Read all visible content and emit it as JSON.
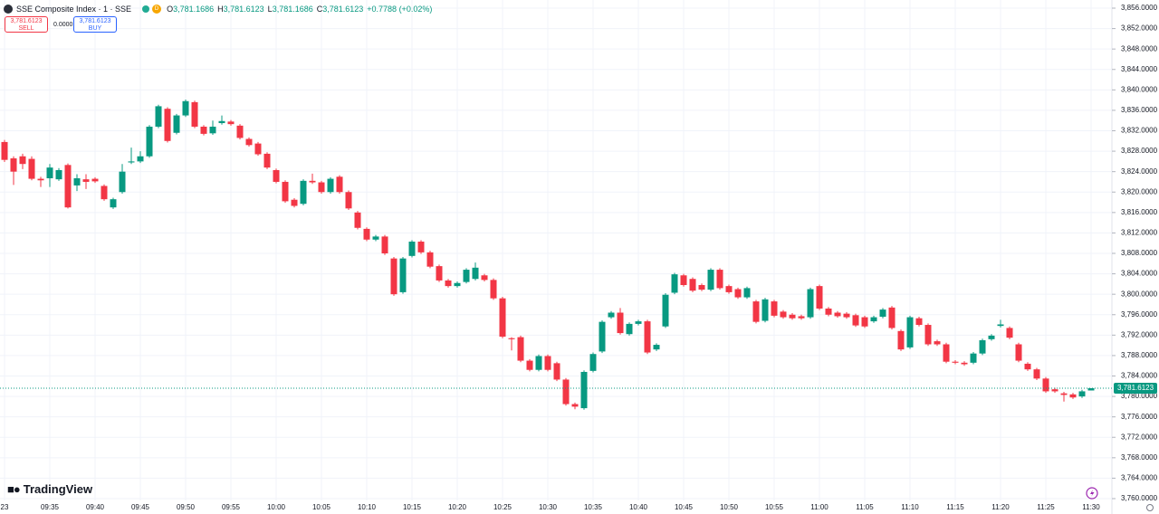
{
  "header": {
    "title": "SSE Composite Index · 1 · SSE",
    "badge": "D",
    "ohlc": [
      {
        "key": "O",
        "value": "3,781.1686"
      },
      {
        "key": "H",
        "value": "3,781.6123"
      },
      {
        "key": "L",
        "value": "3,781.1686"
      },
      {
        "key": "C",
        "value": "3,781.6123"
      }
    ],
    "change": "+0.7788 (+0.02%)"
  },
  "trade": {
    "sell_price": "3,781.6123",
    "sell_label": "SELL",
    "spread": "0.0000",
    "buy_price": "3,781.6123",
    "buy_label": "BUY"
  },
  "logo": "TradingView",
  "chart_data": {
    "type": "candlestick",
    "up_color": "#089981",
    "down_color": "#f23645",
    "grid": true,
    "ylim": [
      3760,
      3856
    ],
    "yticks": [
      {
        "value": 3760,
        "label": "3,760.0000"
      },
      {
        "value": 3764,
        "label": "3,764.0000"
      },
      {
        "value": 3768,
        "label": "3,768.0000"
      },
      {
        "value": 3772,
        "label": "3,772.0000"
      },
      {
        "value": 3776,
        "label": "3,776.0000"
      },
      {
        "value": 3780,
        "label": "3,780.0000"
      },
      {
        "value": 3784,
        "label": "3,784.0000"
      },
      {
        "value": 3788,
        "label": "3,788.0000"
      },
      {
        "value": 3792,
        "label": "3,792.0000"
      },
      {
        "value": 3796,
        "label": "3,796.0000"
      },
      {
        "value": 3800,
        "label": "3,800.0000"
      },
      {
        "value": 3804,
        "label": "3,804.0000"
      },
      {
        "value": 3808,
        "label": "3,808.0000"
      },
      {
        "value": 3812,
        "label": "3,812.0000"
      },
      {
        "value": 3816,
        "label": "3,816.0000"
      },
      {
        "value": 3820,
        "label": "3,820.0000"
      },
      {
        "value": 3824,
        "label": "3,824.0000"
      },
      {
        "value": 3828,
        "label": "3,828.0000"
      },
      {
        "value": 3832,
        "label": "3,832.0000"
      },
      {
        "value": 3836,
        "label": "3,836.0000"
      },
      {
        "value": 3840,
        "label": "3,840.0000"
      },
      {
        "value": 3844,
        "label": "3,844.0000"
      },
      {
        "value": 3848,
        "label": "3,848.0000"
      },
      {
        "value": 3852,
        "label": "3,852.0000"
      },
      {
        "value": 3856,
        "label": "3,856.0000"
      }
    ],
    "xticks": [
      {
        "value": 0,
        "label": "23"
      },
      {
        "value": 5,
        "label": "09:35"
      },
      {
        "value": 10,
        "label": "09:40"
      },
      {
        "value": 15,
        "label": "09:45"
      },
      {
        "value": 20,
        "label": "09:50"
      },
      {
        "value": 25,
        "label": "09:55"
      },
      {
        "value": 30,
        "label": "10:00"
      },
      {
        "value": 35,
        "label": "10:05"
      },
      {
        "value": 40,
        "label": "10:10"
      },
      {
        "value": 45,
        "label": "10:15"
      },
      {
        "value": 50,
        "label": "10:20"
      },
      {
        "value": 55,
        "label": "10:25"
      },
      {
        "value": 60,
        "label": "10:30"
      },
      {
        "value": 65,
        "label": "10:35"
      },
      {
        "value": 70,
        "label": "10:40"
      },
      {
        "value": 75,
        "label": "10:45"
      },
      {
        "value": 80,
        "label": "10:50"
      },
      {
        "value": 85,
        "label": "10:55"
      },
      {
        "value": 90,
        "label": "11:00"
      },
      {
        "value": 95,
        "label": "11:05"
      },
      {
        "value": 100,
        "label": "11:10"
      },
      {
        "value": 105,
        "label": "11:15"
      },
      {
        "value": 110,
        "label": "11:20"
      },
      {
        "value": 115,
        "label": "11:25"
      },
      {
        "value": 120,
        "label": "11:30"
      }
    ],
    "last_price": {
      "value": 3781.6123,
      "label": "3,781.6123"
    },
    "open": [
      3829.8,
      3826.6,
      3827.0,
      3826.5,
      3822.6,
      3822.7,
      3822.5,
      3825.3,
      3821.3,
      3822.5,
      3822.6,
      3821.2,
      3817.0,
      3820.0,
      3825.8,
      3826.0,
      3827.0,
      3832.8,
      3836.3,
      3831.6,
      3835.0,
      3837.6,
      3832.8,
      3831.5,
      3833.5,
      3833.8,
      3833.0,
      3830.4,
      3829.5,
      3827.5,
      3824.3,
      3822.0,
      3818.5,
      3817.7,
      3822.2,
      3821.9,
      3820.0,
      3823.0,
      3820.0,
      3816.0,
      3812.8,
      3810.7,
      3811.3,
      3807.0,
      3800.4,
      3807.5,
      3810.3,
      3808.2,
      3805.5,
      3802.7,
      3801.6,
      3802.4,
      3803.0,
      3803.7,
      3802.8,
      3799.2,
      3791.4,
      3791.6,
      3787.0,
      3785.2,
      3787.9,
      3786.5,
      3783.3,
      3778.5,
      3777.7,
      3785.0,
      3788.8,
      3795.5,
      3796.4,
      3792.2,
      3794.2,
      3794.7,
      3789.2,
      3793.7,
      3800.3,
      3803.7,
      3803.0,
      3801.8,
      3800.9,
      3804.8,
      3801.6,
      3801.0,
      3799.4,
      3798.6,
      3794.8,
      3798.6,
      3796.6,
      3796.0,
      3795.7,
      3795.5,
      3801.6,
      3797.2,
      3796.4,
      3796.2,
      3795.9,
      3795.5,
      3794.7,
      3795.6,
      3797.4,
      3792.8,
      3789.6,
      3795.3,
      3794.0,
      3790.8,
      3790.2,
      3786.8,
      3786.6,
      3786.6,
      3788.4,
      3791.2,
      3793.8,
      3793.4,
      3790.2,
      3786.4,
      3785.3,
      3783.5,
      3781.4,
      3780.6,
      3780.4,
      3780.0,
      3781.1686
    ],
    "high": [
      3830.2,
      3827.0,
      3827.5,
      3827.0,
      3823.0,
      3825.5,
      3824.7,
      3825.6,
      3823.5,
      3823.5,
      3822.9,
      3821.5,
      3818.9,
      3825.5,
      3828.7,
      3828.0,
      3833.1,
      3837.1,
      3836.6,
      3835.3,
      3838.1,
      3837.9,
      3833.1,
      3834.0,
      3835.0,
      3834.1,
      3833.3,
      3830.7,
      3829.8,
      3827.8,
      3824.6,
      3822.3,
      3818.8,
      3822.5,
      3823.6,
      3822.2,
      3822.9,
      3823.3,
      3820.3,
      3816.3,
      3813.1,
      3811.6,
      3811.6,
      3807.3,
      3807.3,
      3810.6,
      3810.6,
      3808.5,
      3805.8,
      3803.0,
      3802.5,
      3805.1,
      3806.2,
      3804.0,
      3803.1,
      3799.5,
      3791.6,
      3791.9,
      3787.3,
      3788.2,
      3788.2,
      3786.8,
      3783.6,
      3778.8,
      3785.1,
      3788.6,
      3794.9,
      3796.7,
      3797.3,
      3794.5,
      3795.0,
      3795.0,
      3790.4,
      3800.2,
      3804.2,
      3804.0,
      3803.3,
      3802.1,
      3805.1,
      3805.1,
      3801.9,
      3801.3,
      3801.5,
      3798.9,
      3799.3,
      3798.9,
      3796.9,
      3796.3,
      3796.0,
      3801.3,
      3801.9,
      3797.5,
      3796.7,
      3796.5,
      3796.2,
      3795.8,
      3795.8,
      3797.3,
      3797.7,
      3793.1,
      3795.8,
      3795.6,
      3794.3,
      3791.1,
      3790.5,
      3787.1,
      3786.9,
      3788.7,
      3791.3,
      3792.2,
      3795.0,
      3793.7,
      3790.5,
      3786.7,
      3785.6,
      3783.8,
      3781.7,
      3780.9,
      3780.7,
      3781.3,
      3781.6123
    ],
    "low": [
      3825.9,
      3821.4,
      3824.5,
      3822.3,
      3821.0,
      3821.0,
      3822.2,
      3816.8,
      3820.2,
      3820.6,
      3821.8,
      3818.3,
      3816.7,
      3819.7,
      3825.5,
      3825.7,
      3826.7,
      3832.5,
      3829.7,
      3831.3,
      3834.7,
      3832.5,
      3831.1,
      3831.2,
      3833.2,
      3833.0,
      3830.3,
      3828.9,
      3827.1,
      3824.5,
      3821.7,
      3817.9,
      3817.0,
      3817.4,
      3821.6,
      3819.7,
      3819.7,
      3819.7,
      3816.5,
      3812.7,
      3810.4,
      3810.4,
      3807.7,
      3799.7,
      3800.1,
      3807.2,
      3807.9,
      3805.1,
      3802.4,
      3801.3,
      3801.3,
      3802.1,
      3802.7,
      3802.5,
      3798.9,
      3791.4,
      3789.0,
      3786.7,
      3784.9,
      3784.9,
      3784.9,
      3783.0,
      3778.2,
      3777.5,
      3777.4,
      3784.7,
      3788.5,
      3795.2,
      3792.1,
      3791.9,
      3793.9,
      3788.3,
      3788.9,
      3793.4,
      3800.0,
      3801.5,
      3800.4,
      3800.6,
      3800.6,
      3800.9,
      3800.1,
      3799.1,
      3799.1,
      3794.3,
      3794.5,
      3795.5,
      3795.2,
      3795.0,
      3795.0,
      3795.2,
      3796.9,
      3795.7,
      3795.4,
      3795.2,
      3793.6,
      3793.4,
      3794.4,
      3795.3,
      3793.1,
      3788.9,
      3789.3,
      3793.7,
      3789.9,
      3789.9,
      3786.5,
      3786.3,
      3786.0,
      3786.3,
      3788.1,
      3790.9,
      3793.5,
      3791.2,
      3786.7,
      3785.0,
      3783.2,
      3780.7,
      3780.7,
      3779.0,
      3779.5,
      3779.7,
      3781.1686
    ],
    "close": [
      3826.3,
      3824.0,
      3825.5,
      3822.6,
      3822.3,
      3824.8,
      3824.3,
      3817.0,
      3822.7,
      3822.0,
      3822.1,
      3818.6,
      3818.6,
      3824.0,
      3826.0,
      3827.0,
      3832.8,
      3836.8,
      3830.0,
      3835.0,
      3837.8,
      3832.8,
      3831.4,
      3832.8,
      3833.9,
      3833.3,
      3830.6,
      3829.2,
      3827.4,
      3824.8,
      3822.0,
      3818.2,
      3817.3,
      3822.2,
      3821.9,
      3820.0,
      3822.6,
      3820.0,
      3816.8,
      3813.0,
      3810.7,
      3811.3,
      3808.0,
      3800.0,
      3807.0,
      3810.3,
      3808.2,
      3805.4,
      3802.7,
      3801.6,
      3802.2,
      3804.8,
      3805.2,
      3802.8,
      3799.2,
      3791.7,
      3791.2,
      3787.0,
      3785.2,
      3787.9,
      3785.2,
      3783.3,
      3778.5,
      3778.0,
      3784.8,
      3788.3,
      3794.6,
      3796.4,
      3792.4,
      3794.2,
      3794.7,
      3788.6,
      3790.1,
      3799.9,
      3803.9,
      3801.8,
      3800.7,
      3800.9,
      3804.8,
      3801.2,
      3800.4,
      3799.4,
      3801.2,
      3794.6,
      3799.0,
      3795.8,
      3795.5,
      3795.3,
      3795.3,
      3801.0,
      3797.2,
      3796.0,
      3795.7,
      3795.5,
      3793.9,
      3793.7,
      3795.5,
      3797.0,
      3793.4,
      3789.2,
      3795.5,
      3794.0,
      3790.2,
      3790.2,
      3786.8,
      3786.6,
      3786.3,
      3788.4,
      3791.0,
      3791.9,
      3794.1,
      3791.5,
      3787.0,
      3785.3,
      3783.5,
      3781.0,
      3781.0,
      3780.3,
      3779.8,
      3781.0,
      3781.6123
    ]
  }
}
